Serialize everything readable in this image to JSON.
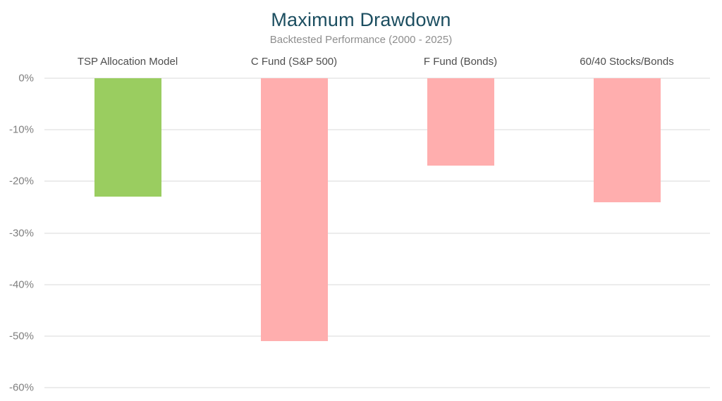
{
  "chart_data": {
    "type": "bar",
    "title": "Maximum Drawdown",
    "subtitle": "Backtested Performance (2000 - 2025)",
    "categories": [
      "TSP Allocation Model",
      "C Fund (S&P 500)",
      "F Fund (Bonds)",
      "60/40 Stocks/Bonds"
    ],
    "values": [
      -23,
      -51,
      -17,
      -24
    ],
    "value_unit": "%",
    "bar_colors": [
      "#9ACD60",
      "#FFAEAE",
      "#FFAEAE",
      "#FFAEAE"
    ],
    "ylabel": "",
    "xlabel": "",
    "ylim": [
      -60,
      0
    ],
    "ytick_labels": [
      "0%",
      "-10%",
      "-20%",
      "-30%",
      "-40%",
      "-50%",
      "-60%"
    ],
    "ytick_values": [
      0,
      -10,
      -20,
      -30,
      -40,
      -50,
      -60
    ],
    "grid": "horizontal",
    "legend_position": "none",
    "category_labels_position": "top",
    "colors": {
      "background": "#FFFFFF",
      "title_text": "#1C4E60",
      "subtitle_text": "#8E8E8E",
      "category_label_text": "#4D4D4D",
      "tick_label_text": "#7F7F7F",
      "gridline": "#ECECEC",
      "highlight_bar_green": "#9ACD60",
      "benchmark_bar_pink": "#FFAEAE"
    }
  }
}
